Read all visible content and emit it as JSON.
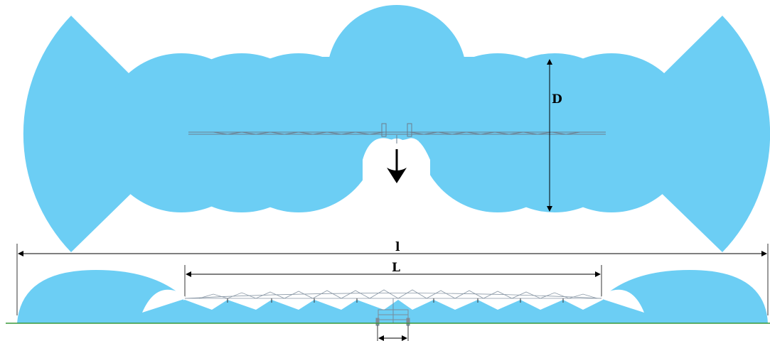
{
  "labels": {
    "spray_depth": "D",
    "total_width": "l",
    "boom_length": "L"
  },
  "colors": {
    "spray": "#6CCEF4",
    "ground": "#3A9A3A",
    "boom": "#6b7c8c",
    "dimension": "#000000"
  },
  "icons": {
    "direction": "arrow-down-icon"
  }
}
